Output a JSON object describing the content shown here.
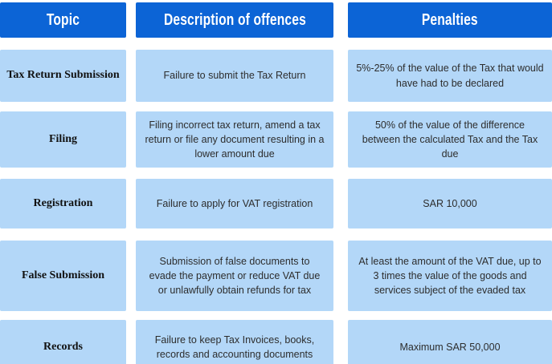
{
  "table": {
    "headers": [
      {
        "label": "Topic"
      },
      {
        "label": "Description of offences"
      },
      {
        "label": "Penalties"
      }
    ],
    "rows": [
      {
        "topic": "Tax Return Submission",
        "description": "Failure to submit the Tax Return",
        "penalty": "5%-25% of the value of the Tax that would have had to be declared"
      },
      {
        "topic": "Filing",
        "description": "Filing incorrect tax return, amend a tax return or file any document resulting in a lower amount due",
        "penalty": "50% of the value of the difference between the calculated Tax and the Tax due"
      },
      {
        "topic": "Registration",
        "description": "Failure to apply for VAT registration",
        "penalty": "SAR 10,000"
      },
      {
        "topic": "False Submission",
        "description": "Submission of false documents to evade the payment or reduce VAT due or unlawfully obtain refunds for tax",
        "penalty": "At least the amount of the VAT due, up to 3 times the value of the goods and services subject of the evaded tax"
      },
      {
        "topic": "Records",
        "description": "Failure to keep Tax Invoices, books, records and accounting documents",
        "penalty": "Maximum SAR 50,000"
      }
    ]
  },
  "colors": {
    "header_bg": "#0c64d6",
    "header_text": "#ffffff",
    "row_bg": "#b3d7f8",
    "body_text": "#2d2d2d",
    "topic_text": "#111111"
  }
}
